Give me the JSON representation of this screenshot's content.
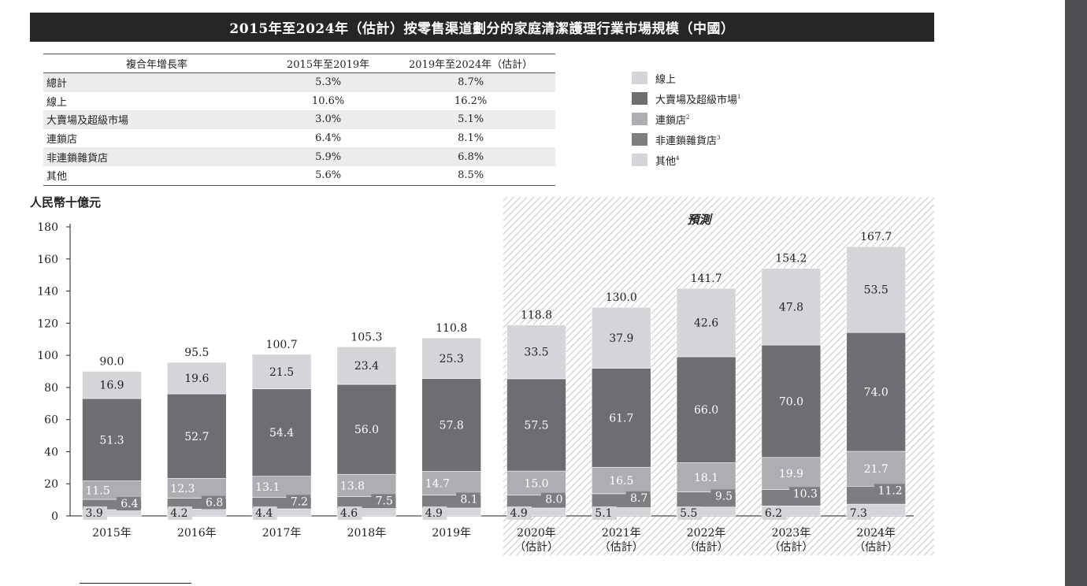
{
  "title": "2015年至2024年（估計）按零售渠道劃分的家庭清潔護理行業市場規模（中國）",
  "cagr_table": {
    "headers": [
      "複合年增長率",
      "2015年至2019年",
      "2019年至2024年（估計）"
    ],
    "rows": [
      {
        "label": "總計",
        "a": "5.3%",
        "b": "8.7%"
      },
      {
        "label": "線上",
        "a": "10.6%",
        "b": "16.2%"
      },
      {
        "label": "大賣場及超級市場",
        "a": "3.0%",
        "b": "5.1%"
      },
      {
        "label": "連鎖店",
        "a": "6.4%",
        "b": "8.1%"
      },
      {
        "label": "非連鎖雜貨店",
        "a": "5.9%",
        "b": "6.8%"
      },
      {
        "label": "其他",
        "a": "5.6%",
        "b": "8.5%"
      }
    ]
  },
  "legend": [
    {
      "label": "線上",
      "sup": "",
      "color": "#d4d5d8"
    },
    {
      "label": "大賣場及超級市場",
      "sup": "1",
      "color": "#6d6e71"
    },
    {
      "label": "連鎖店",
      "sup": "2",
      "color": "#acaeb1"
    },
    {
      "label": "非連鎖雜貨店",
      "sup": "3",
      "color": "#7d7e81"
    },
    {
      "label": "其他",
      "sup": "4",
      "color": "#d4d5d8"
    }
  ],
  "unit_label": "人民幣十億元",
  "forecast_label": "預測",
  "chart_data": {
    "type": "bar",
    "stacked": true,
    "categories": [
      "2015年",
      "2016年",
      "2017年",
      "2018年",
      "2019年",
      "2020年",
      "2021年",
      "2022年",
      "2023年",
      "2024年"
    ],
    "category_sublabels": [
      "",
      "",
      "",
      "",
      "",
      "（估計）",
      "（估計）",
      "（估計）",
      "（估計）",
      "（估計）"
    ],
    "series": [
      {
        "name": "其他",
        "color": "#d4d5d8",
        "values": [
          3.9,
          4.2,
          4.4,
          4.6,
          4.9,
          4.9,
          5.1,
          5.5,
          6.2,
          7.3
        ]
      },
      {
        "name": "非連鎖雜貨店",
        "color": "#7d7e81",
        "values": [
          6.4,
          6.8,
          7.2,
          7.5,
          8.1,
          8.0,
          8.7,
          9.5,
          10.3,
          11.2
        ]
      },
      {
        "name": "連鎖店",
        "color": "#acaeb1",
        "values": [
          11.5,
          12.3,
          13.1,
          13.8,
          14.7,
          15.0,
          16.5,
          18.1,
          19.9,
          21.7
        ]
      },
      {
        "name": "大賣場及超級市場",
        "color": "#6d6e71",
        "values": [
          51.3,
          52.7,
          54.4,
          56.0,
          57.8,
          57.5,
          61.7,
          66.0,
          70.0,
          74.0
        ]
      },
      {
        "name": "線上",
        "color": "#d4d5d8",
        "values": [
          16.9,
          19.6,
          21.5,
          23.4,
          25.3,
          33.5,
          37.9,
          42.6,
          47.8,
          53.5
        ]
      }
    ],
    "totals": [
      "90.0",
      "95.5",
      "100.7",
      "105.3",
      "110.8",
      "118.8",
      "130.0",
      "141.7",
      "154.2",
      "167.7"
    ],
    "labels": [
      [
        "3.9",
        "4.2",
        "4.4",
        "4.6",
        "4.9",
        "4.9",
        "5.1",
        "5.5",
        "6.2",
        "7.3"
      ],
      [
        "6.4",
        "6.8",
        "7.2",
        "7.5",
        "8.1",
        "8.0",
        "8.7",
        "9.5",
        "10.3",
        "11.2"
      ],
      [
        "11.5",
        "12.3",
        "13.1",
        "13.8",
        "14.7",
        "15.0",
        "16.5",
        "18.1",
        "19.9",
        "21.7"
      ],
      [
        "51.3",
        "52.7",
        "54.4",
        "56.0",
        "57.8",
        "57.5",
        "61.7",
        "66.0",
        "70.0",
        "74.0"
      ],
      [
        "16.9",
        "19.6",
        "21.5",
        "23.4",
        "25.3",
        "33.5",
        "37.9",
        "42.6",
        "47.8",
        "53.5"
      ]
    ],
    "forecast_from_index": 5,
    "ylim": [
      0,
      180
    ],
    "yticks": [
      0,
      20,
      40,
      60,
      80,
      100,
      120,
      140,
      160,
      180
    ],
    "ylabel": "人民幣十億元",
    "xlabel": "",
    "grid": false,
    "legend_position": "top-right"
  }
}
